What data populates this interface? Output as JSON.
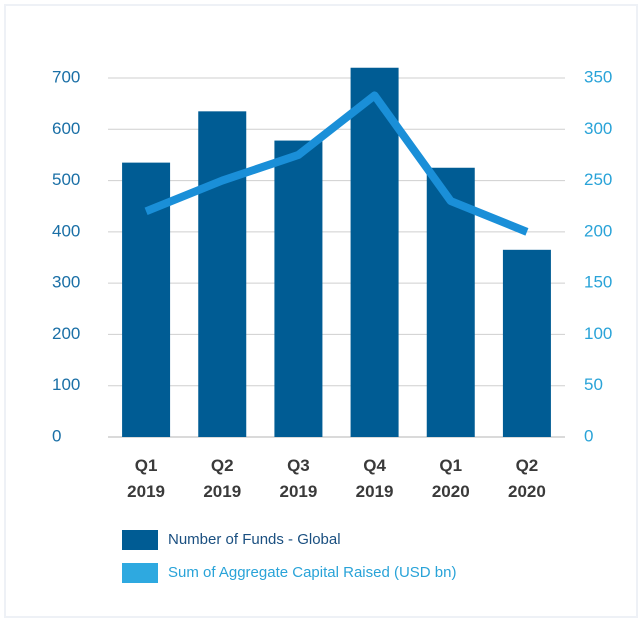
{
  "chart_data": {
    "type": "bar_line",
    "categories": [
      "Q1 2019",
      "Q2 2019",
      "Q3 2019",
      "Q4 2019",
      "Q1 2020",
      "Q2 2020"
    ],
    "series": [
      {
        "name": "Number of Funds - Global",
        "color": "#005c94",
        "type": "bar",
        "values": [
          535,
          635,
          578,
          720,
          525,
          365
        ]
      },
      {
        "name": "Sum of Aggregate Capital Raised (USD bn)",
        "color": "#1a8fd8",
        "type": "line",
        "axis": "y2",
        "values": [
          220,
          250,
          275,
          333,
          230,
          200
        ]
      }
    ],
    "ylim": [
      0,
      700
    ],
    "yticks": [
      0,
      100,
      200,
      300,
      400,
      500,
      600,
      700
    ],
    "y2lim": [
      0,
      350
    ],
    "y2ticks": [
      0,
      50,
      100,
      150,
      200,
      250,
      300,
      350
    ],
    "grid": true
  }
}
